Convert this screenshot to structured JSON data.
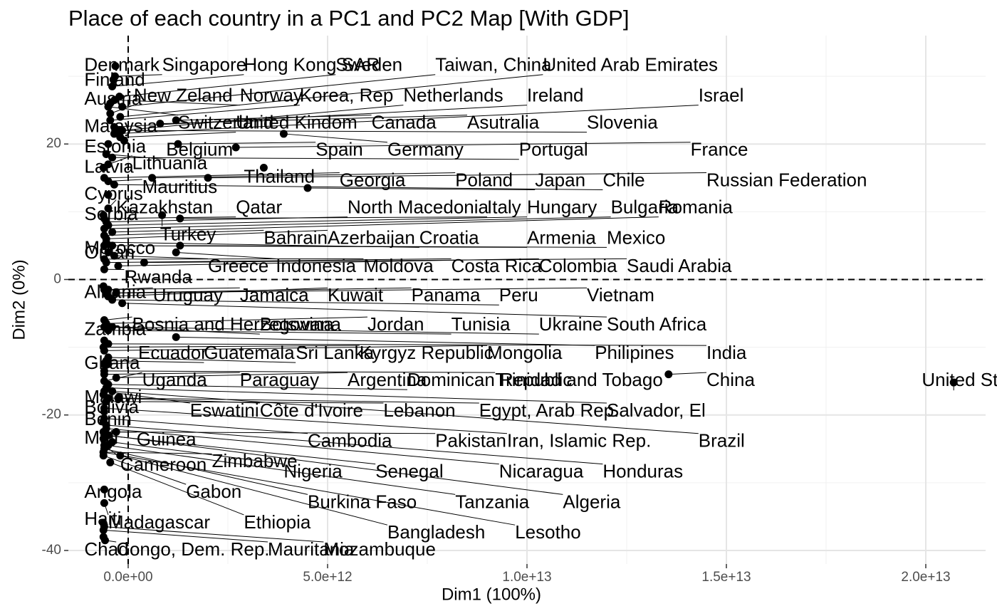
{
  "chart_data": {
    "type": "scatter",
    "title": "Place of each country in a PC1 and PC2 Map [With GDP]",
    "xlabel": "Dim1 (100%)",
    "ylabel": "Dim2 (0%)",
    "xlim": [
      -1500000000000.0,
      21500000000000.0
    ],
    "ylim": [
      -42,
      36
    ],
    "x_ticks": [
      0,
      5000000000000.0,
      10000000000000.0,
      15000000000000.0,
      20000000000000.0
    ],
    "x_tick_labels": [
      "0.0e+00",
      "5.0e+12",
      "1.0e+13",
      "1.5e+13",
      "2.0e+13"
    ],
    "y_ticks": [
      -40,
      -20,
      0,
      20
    ],
    "y_tick_labels": [
      "-40",
      "-20",
      "0",
      "20"
    ],
    "reference_lines": {
      "x": 0,
      "y": 0,
      "style": "dashed"
    },
    "grid": true,
    "points": [
      {
        "name": "Denmark",
        "x": -320000000000.0,
        "y": 31.5,
        "lx": -1100000000000.0,
        "ly": 31.5
      },
      {
        "name": "Singapore",
        "x": -330000000000.0,
        "y": 30.0,
        "lx": 850000000000.0,
        "ly": 31.5
      },
      {
        "name": "Hong Kong SAR",
        "x": -400000000000.0,
        "y": 28.5,
        "lx": 2900000000000.0,
        "ly": 31.5
      },
      {
        "name": "Sweden",
        "x": -220000000000.0,
        "y": 27.0,
        "lx": 5200000000000.0,
        "ly": 31.5
      },
      {
        "name": "Taiwan, China",
        "x": -150000000000.0,
        "y": 25.5,
        "lx": 7700000000000.0,
        "ly": 31.5
      },
      {
        "name": "United Arab Emirates",
        "x": -200000000000.0,
        "y": 24.0,
        "lx": 10400000000000.0,
        "ly": 31.5
      },
      {
        "name": "Finland",
        "x": -370000000000.0,
        "y": 29.5,
        "lx": -1100000000000.0,
        "ly": 29.3
      },
      {
        "name": "New Zeland",
        "x": -450000000000.0,
        "y": 24.5,
        "lx": 140000000000.0,
        "ly": 27.0
      },
      {
        "name": "Norway",
        "x": -340000000000.0,
        "y": 26.5,
        "lx": 2800000000000.0,
        "ly": 27.0
      },
      {
        "name": "Korea, Rep",
        "x": -450000000000.0,
        "y": 23.5,
        "lx": 4300000000000.0,
        "ly": 27.0
      },
      {
        "name": "Netherlands",
        "x": -150000000000.0,
        "y": 22.0,
        "lx": 6900000000000.0,
        "ly": 27.0
      },
      {
        "name": "Ireland",
        "x": -350000000000.0,
        "y": 22.5,
        "lx": 10000000000000.0,
        "ly": 27.0
      },
      {
        "name": "Israel",
        "x": -350000000000.0,
        "y": 21.5,
        "lx": 14300000000000.0,
        "ly": 27.0
      },
      {
        "name": "Austria",
        "x": -450000000000.0,
        "y": 26.0,
        "lx": -1100000000000.0,
        "ly": 26.5
      },
      {
        "name": "Switzerland",
        "x": -500000000000.0,
        "y": 25.5,
        "lx": 1250000000000.0,
        "ly": 23.0
      },
      {
        "name": "United Kindom",
        "x": -200000000000.0,
        "y": 21.0,
        "lx": 2700000000000.0,
        "ly": 23.0
      },
      {
        "name": "Canada",
        "x": 1200000000000.0,
        "y": 23.5,
        "lx": 6100000000000.0,
        "ly": 23.0
      },
      {
        "name": "Asutralia",
        "x": 800000000000.0,
        "y": 23.0,
        "lx": 8500000000000.0,
        "ly": 23.0
      },
      {
        "name": "Slovenia",
        "x": -250000000000.0,
        "y": 22.0,
        "lx": 11500000000000.0,
        "ly": 23.0
      },
      {
        "name": "Malaysia",
        "x": -100000000000.0,
        "y": 20.5,
        "lx": -1100000000000.0,
        "ly": 22.5
      },
      {
        "name": "Belgium",
        "x": -550000000000.0,
        "y": 18.5,
        "lx": 950000000000.0,
        "ly": 19.0
      },
      {
        "name": "Spain",
        "x": 1250000000000.0,
        "y": 20.0,
        "lx": 4700000000000.0,
        "ly": 19.0
      },
      {
        "name": "Germany",
        "x": 3900000000000.0,
        "y": 21.5,
        "lx": 6500000000000.0,
        "ly": 19.0
      },
      {
        "name": "Portugal",
        "x": -400000000000.0,
        "y": 18.0,
        "lx": 9800000000000.0,
        "ly": 19.0
      },
      {
        "name": "France",
        "x": 2700000000000.0,
        "y": 19.5,
        "lx": 14100000000000.0,
        "ly": 19.0
      },
      {
        "name": "Estonia",
        "x": -500000000000.0,
        "y": 20.0,
        "lx": -1100000000000.0,
        "ly": 19.5
      },
      {
        "name": "Lithuania",
        "x": -500000000000.0,
        "y": 17.0,
        "lx": 100000000000.0,
        "ly": 17.0
      },
      {
        "name": "Latvia",
        "x": -620000000000.0,
        "y": 16.5,
        "lx": -1100000000000.0,
        "ly": 16.5
      },
      {
        "name": "Thailand",
        "x": 3400000000000.0,
        "y": 16.5,
        "lx": 2900000000000.0,
        "ly": 15.0
      },
      {
        "name": "Georgia",
        "x": -600000000000.0,
        "y": 15.0,
        "lx": 5300000000000.0,
        "ly": 14.5
      },
      {
        "name": "Poland",
        "x": 600000000000.0,
        "y": 15.0,
        "lx": 8200000000000.0,
        "ly": 14.5
      },
      {
        "name": "Japan",
        "x": 4500000000000.0,
        "y": 13.5,
        "lx": 10200000000000.0,
        "ly": 14.5
      },
      {
        "name": "Chile",
        "x": -350000000000.0,
        "y": 14.0,
        "lx": 11900000000000.0,
        "ly": 14.5
      },
      {
        "name": "Russian Federation",
        "x": 2000000000000.0,
        "y": 15.0,
        "lx": 14500000000000.0,
        "ly": 14.5
      },
      {
        "name": "Mauritius",
        "x": -500000000000.0,
        "y": 14.5,
        "lx": 350000000000.0,
        "ly": 13.5
      },
      {
        "name": "Cyprus",
        "x": -500000000000.0,
        "y": 12.5,
        "lx": -1100000000000.0,
        "ly": 12.5
      },
      {
        "name": "Kazakhstan",
        "x": -500000000000.0,
        "y": 10.5,
        "lx": -300000000000.0,
        "ly": 10.5
      },
      {
        "name": "Qatar",
        "x": -600000000000.0,
        "y": 9.0,
        "lx": 2700000000000.0,
        "ly": 10.5
      },
      {
        "name": "North Macedonia",
        "x": -550000000000.0,
        "y": 8.5,
        "lx": 5500000000000.0,
        "ly": 10.5
      },
      {
        "name": "Italy",
        "x": 1300000000000.0,
        "y": 9.0,
        "lx": 9000000000000.0,
        "ly": 10.5
      },
      {
        "name": "Hungary",
        "x": -500000000000.0,
        "y": 8.0,
        "lx": 10000000000000.0,
        "ly": 10.5
      },
      {
        "name": "Bulgaria",
        "x": -600000000000.0,
        "y": 7.5,
        "lx": 12100000000000.0,
        "ly": 10.5
      },
      {
        "name": "Romania",
        "x": -400000000000.0,
        "y": 7.0,
        "lx": 13300000000000.0,
        "ly": 10.5
      },
      {
        "name": "Serbia",
        "x": -620000000000.0,
        "y": 9.5,
        "lx": -1100000000000.0,
        "ly": 9.5
      },
      {
        "name": "Turkey",
        "x": 850000000000.0,
        "y": 9.5,
        "lx": 800000000000.0,
        "ly": 6.5
      },
      {
        "name": "Bahrain",
        "x": -600000000000.0,
        "y": 6.5,
        "lx": 3400000000000.0,
        "ly": 6.0
      },
      {
        "name": "Azerbaijan",
        "x": -550000000000.0,
        "y": 6.0,
        "lx": 5000000000000.0,
        "ly": 6.0
      },
      {
        "name": "Croatia",
        "x": -550000000000.0,
        "y": 5.5,
        "lx": 7300000000000.0,
        "ly": 6.0
      },
      {
        "name": "Armenia",
        "x": -600000000000.0,
        "y": 5.0,
        "lx": 10000000000000.0,
        "ly": 6.0
      },
      {
        "name": "Mexico",
        "x": 1300000000000.0,
        "y": 5.0,
        "lx": 12000000000000.0,
        "ly": 6.0
      },
      {
        "name": "Morocco",
        "x": -400000000000.0,
        "y": 5.0,
        "lx": -1100000000000.0,
        "ly": 4.5
      },
      {
        "name": "Oman",
        "x": -500000000000.0,
        "y": 4.0,
        "lx": -1100000000000.0,
        "ly": 3.8
      },
      {
        "name": "Greece",
        "x": -350000000000.0,
        "y": 3.5,
        "lx": 2000000000000.0,
        "ly": 1.8
      },
      {
        "name": "Indonesia",
        "x": 1200000000000.0,
        "y": 4.0,
        "lx": 3700000000000.0,
        "ly": 1.8
      },
      {
        "name": "Moldova",
        "x": -600000000000.0,
        "y": 3.0,
        "lx": 5900000000000.0,
        "ly": 1.8
      },
      {
        "name": "Costa Rica",
        "x": -550000000000.0,
        "y": 2.5,
        "lx": 8100000000000.0,
        "ly": 1.8
      },
      {
        "name": "Colombia",
        "x": -250000000000.0,
        "y": 2.0,
        "lx": 10300000000000.0,
        "ly": 1.8
      },
      {
        "name": "Saudi Arabia",
        "x": 400000000000.0,
        "y": 2.5,
        "lx": 12500000000000.0,
        "ly": 1.8
      },
      {
        "name": "Rwanda",
        "x": -600000000000.0,
        "y": 1.5,
        "lx": -100000000000.0,
        "ly": 0.2
      },
      {
        "name": "Albania",
        "x": -620000000000.0,
        "y": -1.0,
        "lx": -1100000000000.0,
        "ly": -2.0
      },
      {
        "name": "Uruguay",
        "x": -500000000000.0,
        "y": -1.5,
        "lx": 620000000000.0,
        "ly": -2.5
      },
      {
        "name": "Jamaica",
        "x": -600000000000.0,
        "y": -1.5,
        "lx": 2800000000000.0,
        "ly": -2.5
      },
      {
        "name": "Kuwait",
        "x": -500000000000.0,
        "y": -2.5,
        "lx": 5000000000000.0,
        "ly": -2.5
      },
      {
        "name": "Panama",
        "x": -550000000000.0,
        "y": -2.0,
        "lx": 7100000000000.0,
        "ly": -2.5
      },
      {
        "name": "Peru",
        "x": -400000000000.0,
        "y": -3.0,
        "lx": 9300000000000.0,
        "ly": -2.5
      },
      {
        "name": "Vietnam",
        "x": -300000000000.0,
        "y": -2.0,
        "lx": 11500000000000.0,
        "ly": -2.5
      },
      {
        "name": "Bosnia and Herzegovina",
        "x": -600000000000.0,
        "y": -6.0,
        "lx": 100000000000.0,
        "ly": -6.8
      },
      {
        "name": "Botswana",
        "x": -600000000000.0,
        "y": -7.0,
        "lx": 3300000000000.0,
        "ly": -6.8
      },
      {
        "name": "Jordan",
        "x": -550000000000.0,
        "y": -6.5,
        "lx": 6000000000000.0,
        "ly": -6.8
      },
      {
        "name": "Tunisia",
        "x": -500000000000.0,
        "y": -7.5,
        "lx": 8100000000000.0,
        "ly": -6.8
      },
      {
        "name": "Ukraine",
        "x": -400000000000.0,
        "y": -7.0,
        "lx": 10300000000000.0,
        "ly": -6.8
      },
      {
        "name": "South Africa",
        "x": -150000000000.0,
        "y": -3.5,
        "lx": 12000000000000.0,
        "ly": -6.8
      },
      {
        "name": "Zambia",
        "x": -600000000000.0,
        "y": -9.0,
        "lx": -1100000000000.0,
        "ly": -7.5
      },
      {
        "name": "Ecuador",
        "x": -500000000000.0,
        "y": -12.5,
        "lx": 250000000000.0,
        "ly": -11.0
      },
      {
        "name": "Guatemala",
        "x": -550000000000.0,
        "y": -12.0,
        "lx": 1900000000000.0,
        "ly": -11.0
      },
      {
        "name": "Sri Lanka",
        "x": -500000000000.0,
        "y": -11.5,
        "lx": 4200000000000.0,
        "ly": -11.0
      },
      {
        "name": "Kyrgyz Republic",
        "x": -620000000000.0,
        "y": -10.0,
        "lx": 5800000000000.0,
        "ly": -11.0
      },
      {
        "name": "Mongolia",
        "x": -600000000000.0,
        "y": -10.5,
        "lx": 9000000000000.0,
        "ly": -11.0
      },
      {
        "name": "Philipines",
        "x": 1200000000000.0,
        "y": -8.5,
        "lx": 11700000000000.0,
        "ly": -11.0
      },
      {
        "name": "India",
        "x": -500000000000.0,
        "y": -9.5,
        "lx": 14500000000000.0,
        "ly": -11.0
      },
      {
        "name": "Ghana",
        "x": -600000000000.0,
        "y": -12.5,
        "lx": -1100000000000.0,
        "ly": -12.5
      },
      {
        "name": "China",
        "x": 13550000000000.0,
        "y": -14.0,
        "lx": 14500000000000.0,
        "ly": -15.0
      },
      {
        "name": "United States",
        "x": 20700000000000.0,
        "y": -15.2,
        "lx": 19900000000000.0,
        "ly": -15.0
      },
      {
        "name": "Uganda",
        "x": -600000000000.0,
        "y": -15.0,
        "lx": 350000000000.0,
        "ly": -15.0
      },
      {
        "name": "Paraguay",
        "x": -600000000000.0,
        "y": -14.0,
        "lx": 2800000000000.0,
        "ly": -15.0
      },
      {
        "name": "Argentina",
        "x": -300000000000.0,
        "y": -14.5,
        "lx": 5500000000000.0,
        "ly": -15.0
      },
      {
        "name": "Dominican Republic",
        "x": -500000000000.0,
        "y": -15.5,
        "lx": 7000000000000.0,
        "ly": -15.0
      },
      {
        "name": "Trinidad and Tobago",
        "x": -600000000000.0,
        "y": -13.5,
        "lx": 9200000000000.0,
        "ly": -15.0
      },
      {
        "name": "Malawi",
        "x": -620000000000.0,
        "y": -17.0,
        "lx": -1100000000000.0,
        "ly": -17.5
      },
      {
        "name": "Eswatini",
        "x": -600000000000.0,
        "y": -16.5,
        "lx": 1550000000000.0,
        "ly": -19.5
      },
      {
        "name": "Côte d'Ivoire",
        "x": -500000000000.0,
        "y": -17.5,
        "lx": 3300000000000.0,
        "ly": -19.5
      },
      {
        "name": "Lebanon",
        "x": -550000000000.0,
        "y": -18.0,
        "lx": 6400000000000.0,
        "ly": -19.5
      },
      {
        "name": "Egypt, Arab Rep.",
        "x": -250000000000.0,
        "y": -17.5,
        "lx": 8800000000000.0,
        "ly": -19.5
      },
      {
        "name": "Salvador, El",
        "x": -550000000000.0,
        "y": -16.0,
        "lx": 12000000000000.0,
        "ly": -19.5
      },
      {
        "name": "Bolivia",
        "x": -600000000000.0,
        "y": -19.5,
        "lx": -1100000000000.0,
        "ly": -19.0
      },
      {
        "name": "Benin",
        "x": -620000000000.0,
        "y": -21.0,
        "lx": -1100000000000.0,
        "ly": -20.8
      },
      {
        "name": "Guinea",
        "x": -620000000000.0,
        "y": -22.5,
        "lx": 210000000000.0,
        "ly": -23.8
      },
      {
        "name": "Cambodia",
        "x": -600000000000.0,
        "y": -20.5,
        "lx": 4500000000000.0,
        "ly": -24.0
      },
      {
        "name": "Pakistan",
        "x": -300000000000.0,
        "y": -22.5,
        "lx": 7700000000000.0,
        "ly": -24.0
      },
      {
        "name": "Iran, Islamic Rep.",
        "x": -600000000000.0,
        "y": -19.0,
        "lx": 9500000000000.0,
        "ly": -24.0
      },
      {
        "name": "Brazil",
        "x": -400000000000.0,
        "y": -16.5,
        "lx": 14300000000000.0,
        "ly": -24.0
      },
      {
        "name": "Mali",
        "x": -620000000000.0,
        "y": -23.5,
        "lx": -1100000000000.0,
        "ly": -23.5
      },
      {
        "name": "Cameroon",
        "x": -600000000000.0,
        "y": -24.5,
        "lx": -200000000000.0,
        "ly": -27.5
      },
      {
        "name": "Zimbabwe",
        "x": -620000000000.0,
        "y": -25.5,
        "lx": 2100000000000.0,
        "ly": -27.0
      },
      {
        "name": "Nigeria",
        "x": -400000000000.0,
        "y": -24.0,
        "lx": 3900000000000.0,
        "ly": -28.5
      },
      {
        "name": "Senegal",
        "x": -600000000000.0,
        "y": -23.0,
        "lx": 6200000000000.0,
        "ly": -28.5
      },
      {
        "name": "Nicaragua",
        "x": -550000000000.0,
        "y": -22.0,
        "lx": 9300000000000.0,
        "ly": -28.5
      },
      {
        "name": "Honduras",
        "x": -550000000000.0,
        "y": -21.5,
        "lx": 11900000000000.0,
        "ly": -28.5
      },
      {
        "name": "Angola",
        "x": -600000000000.0,
        "y": -31.0,
        "lx": -1100000000000.0,
        "ly": -31.5
      },
      {
        "name": "Gabon",
        "x": -620000000000.0,
        "y": -26.0,
        "lx": 1450000000000.0,
        "ly": -31.5
      },
      {
        "name": "Burkina Faso",
        "x": -600000000000.0,
        "y": -25.0,
        "lx": 4500000000000.0,
        "ly": -33.0
      },
      {
        "name": "Tanzania",
        "x": -500000000000.0,
        "y": -24.5,
        "lx": 8200000000000.0,
        "ly": -33.0
      },
      {
        "name": "Algeria",
        "x": -500000000000.0,
        "y": -23.0,
        "lx": 10900000000000.0,
        "ly": -33.0
      },
      {
        "name": "Haiti",
        "x": -620000000000.0,
        "y": -36.0,
        "lx": -1100000000000.0,
        "ly": -35.5
      },
      {
        "name": "Madagascar",
        "x": -600000000000.0,
        "y": -33.0,
        "lx": -500000000000.0,
        "ly": -36.0
      },
      {
        "name": "Ethiopia",
        "x": -450000000000.0,
        "y": -27.0,
        "lx": 2900000000000.0,
        "ly": -36.0
      },
      {
        "name": "Bangladesh",
        "x": -200000000000.0,
        "y": -26.0,
        "lx": 6500000000000.0,
        "ly": -37.5
      },
      {
        "name": "Lesotho",
        "x": -620000000000.0,
        "y": -25.5,
        "lx": 9700000000000.0,
        "ly": -37.5
      },
      {
        "name": "Chad",
        "x": -620000000000.0,
        "y": -38.0,
        "lx": -1100000000000.0,
        "ly": -40.0
      },
      {
        "name": "Congo, Dem. Rep.",
        "x": -580000000000.0,
        "y": -38.5,
        "lx": -300000000000.0,
        "ly": -40.0
      },
      {
        "name": "Mauritania",
        "x": -620000000000.0,
        "y": -37.0,
        "lx": 3500000000000.0,
        "ly": -40.0
      },
      {
        "name": "Mozambuque",
        "x": -600000000000.0,
        "y": -36.5,
        "lx": 4900000000000.0,
        "ly": -40.0
      }
    ]
  }
}
